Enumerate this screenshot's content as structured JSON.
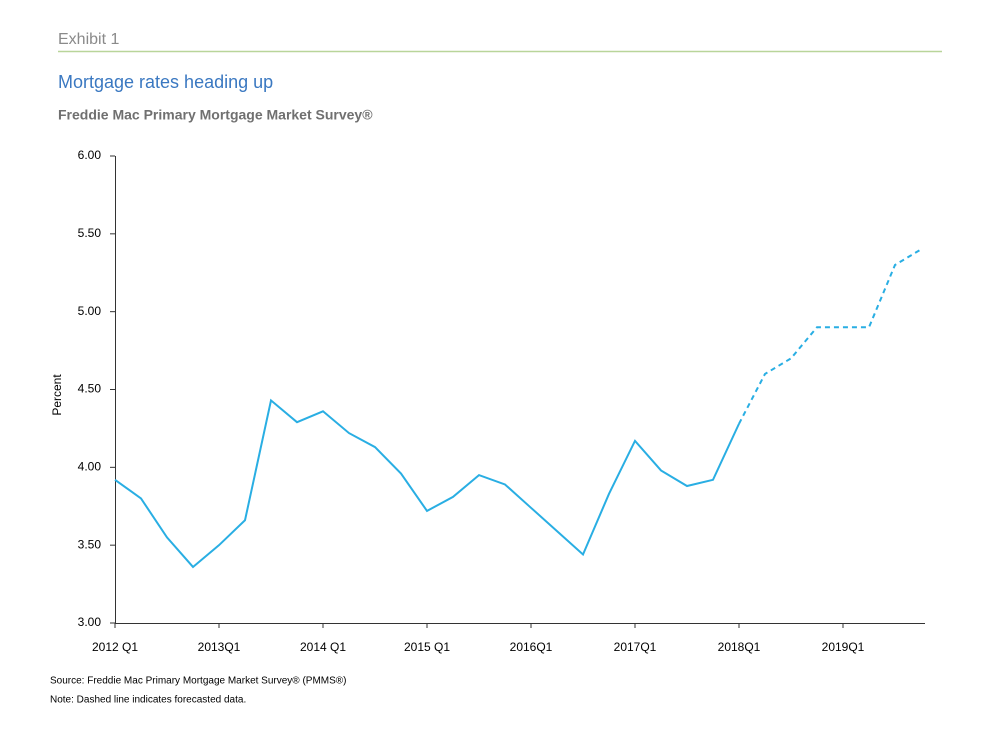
{
  "chart_data": {
    "type": "line",
    "header": "Exhibit 1",
    "title": "Mortgage rates heading up",
    "subtitle": "Freddie Mac Primary Mortgage Market Survey®",
    "ylabel": "Percent",
    "source": "Source: Freddie Mac Primary Mortgage Market Survey® (PMMS®)",
    "note": "Note: Dashed line indicates forecasted data.",
    "categories": [
      "2012 Q1",
      null,
      null,
      null,
      "2013Q1",
      null,
      null,
      null,
      "2014 Q1",
      null,
      null,
      null,
      "2015 Q1",
      null,
      null,
      null,
      "2016Q1",
      null,
      null,
      null,
      "2017Q1",
      null,
      null,
      null,
      "2018Q1",
      null,
      null,
      null,
      "2019Q1",
      null,
      null,
      null
    ],
    "series": [
      {
        "color": "#29aee3",
        "dashed": false,
        "values": [
          3.92,
          3.8,
          3.55,
          3.36,
          3.5,
          3.66,
          4.43,
          4.29,
          4.36,
          4.22,
          4.13,
          3.96,
          3.72,
          3.81,
          3.95,
          3.89,
          3.74,
          3.59,
          3.44,
          3.83,
          4.17,
          3.98,
          3.88,
          3.92,
          4.28,
          null,
          null,
          null,
          null,
          null,
          null,
          null
        ]
      },
      {
        "color": "#29aee3",
        "dashed": true,
        "values": [
          null,
          null,
          null,
          null,
          null,
          null,
          null,
          null,
          null,
          null,
          null,
          null,
          null,
          null,
          null,
          null,
          null,
          null,
          null,
          null,
          null,
          null,
          null,
          null,
          4.28,
          4.6,
          4.7,
          4.9,
          4.9,
          4.9,
          5.3,
          5.4
        ]
      }
    ],
    "ylim": [
      3,
      6
    ],
    "yticks": [
      {
        "value": 3,
        "label": "3.00"
      },
      {
        "value": 3.5,
        "label": "3.50"
      },
      {
        "value": 4,
        "label": "4.00"
      },
      {
        "value": 4.5,
        "label": "4.50"
      },
      {
        "value": 5,
        "label": "5.00"
      },
      {
        "value": 5.5,
        "label": "5.50"
      },
      {
        "value": 6,
        "label": "6.00"
      }
    ],
    "grid": false
  }
}
